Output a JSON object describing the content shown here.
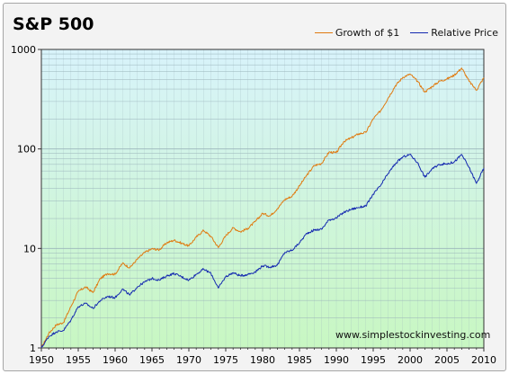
{
  "title": "S&P 500",
  "watermark": "www.simplestockinvesting.com",
  "colors": {
    "growth": "#e07a10",
    "price": "#1428b0",
    "bg_top": "#d8f3fb",
    "bg_bottom": "#c8f7c2",
    "grid": "#9ab3ba"
  },
  "chart_data": {
    "type": "line",
    "title": "S&P 500",
    "xlabel": "",
    "ylabel": "",
    "yscale": "log",
    "xlim": [
      1950,
      2010
    ],
    "ylim": [
      1,
      1000
    ],
    "x_ticks": [
      "1950",
      "1955",
      "1960",
      "1965",
      "1970",
      "1975",
      "1980",
      "1985",
      "1990",
      "1995",
      "2000",
      "2005",
      "2010"
    ],
    "y_ticks": [
      "1",
      "10",
      "100",
      "1000"
    ],
    "legend_position": "top-right",
    "grid": true,
    "series": [
      {
        "name": "Growth of $1",
        "color": "#e07a10",
        "x": [
          1950,
          1951,
          1952,
          1953,
          1954,
          1955,
          1956,
          1957,
          1958,
          1959,
          1960,
          1961,
          1962,
          1963,
          1964,
          1965,
          1966,
          1967,
          1968,
          1969,
          1970,
          1971,
          1972,
          1973,
          1974,
          1975,
          1976,
          1977,
          1978,
          1979,
          1980,
          1981,
          1982,
          1983,
          1984,
          1985,
          1986,
          1987,
          1988,
          1989,
          1990,
          1991,
          1992,
          1993,
          1994,
          1995,
          1996,
          1997,
          1998,
          1999,
          2000,
          2001,
          2002,
          2003,
          2004,
          2005,
          2006,
          2007,
          2008,
          2009,
          2010
        ],
        "values": [
          1.0,
          1.4,
          1.7,
          1.8,
          2.6,
          3.7,
          4.1,
          3.6,
          5.0,
          5.6,
          5.5,
          7.1,
          6.4,
          7.8,
          9.1,
          9.9,
          9.7,
          11.4,
          12.1,
          11.3,
          10.6,
          13.0,
          15.2,
          13.2,
          10.2,
          13.4,
          16.1,
          14.7,
          15.9,
          18.6,
          22.5,
          21.2,
          25.1,
          31.0,
          33.5,
          42.5,
          54.6,
          68.0,
          71.5,
          92.9,
          91.5,
          118.6,
          128.9,
          141.6,
          146.5,
          200.9,
          241.6,
          322.3,
          431.4,
          523.4,
          565.0,
          480.0,
          374.1,
          425.0,
          480.8,
          504.3,
          553.4,
          650.0,
          480.0,
          390.0,
          520.0
        ]
      },
      {
        "name": "Relative Price",
        "color": "#1428b0",
        "x": [
          1950,
          1951,
          1952,
          1953,
          1954,
          1955,
          1956,
          1957,
          1958,
          1959,
          1960,
          1961,
          1962,
          1963,
          1964,
          1965,
          1966,
          1967,
          1968,
          1969,
          1970,
          1971,
          1972,
          1973,
          1974,
          1975,
          1976,
          1977,
          1978,
          1979,
          1980,
          1981,
          1982,
          1983,
          1984,
          1985,
          1986,
          1987,
          1988,
          1989,
          1990,
          1991,
          1992,
          1993,
          1994,
          1995,
          1996,
          1997,
          1998,
          1999,
          2000,
          2001,
          2002,
          2003,
          2004,
          2005,
          2006,
          2007,
          2008,
          2009,
          2010
        ],
        "values": [
          1.0,
          1.3,
          1.45,
          1.5,
          1.9,
          2.6,
          2.8,
          2.5,
          3.0,
          3.3,
          3.2,
          3.9,
          3.4,
          4.1,
          4.6,
          5.0,
          4.8,
          5.3,
          5.6,
          5.2,
          4.8,
          5.5,
          6.2,
          5.6,
          4.0,
          5.2,
          5.7,
          5.3,
          5.5,
          5.8,
          6.7,
          6.5,
          6.8,
          9.1,
          9.6,
          11.4,
          14.2,
          15.3,
          15.6,
          19.4,
          20.2,
          23.0,
          24.7,
          25.8,
          26.7,
          35.1,
          42.8,
          56.4,
          71.0,
          83.0,
          88.0,
          73.0,
          52.0,
          63.0,
          70.0,
          71.0,
          74.0,
          88.0,
          65.0,
          45.0,
          64.0
        ]
      }
    ]
  }
}
